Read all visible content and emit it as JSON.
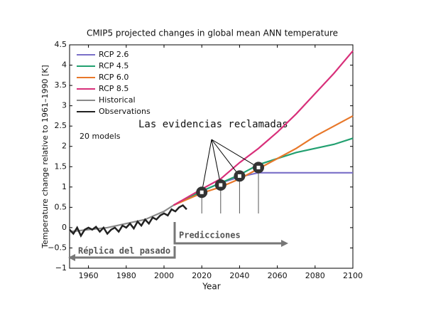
{
  "chart_data": {
    "type": "line",
    "title": "CMIP5 projected changes in global mean ANN temperature",
    "x_label": "Year",
    "y_label": "Temperature change relative to 1961–1990 [K]",
    "xlim": [
      1950,
      2100
    ],
    "xticks": [
      1960,
      1980,
      2000,
      2020,
      2040,
      2060,
      2080,
      2100
    ],
    "ylim": [
      -1,
      4.5
    ],
    "yticks": [
      {
        "value": -1,
        "label": "−1"
      },
      {
        "value": -0.5,
        "label": "−0.5"
      },
      0,
      0.5,
      1,
      1.5,
      2,
      2.5,
      3,
      3.5,
      4,
      4.5
    ],
    "legend": "upper left",
    "series": [
      {
        "name": "RCP 2.6",
        "color": "#7a6fc8",
        "x": [
          2005,
          2020,
          2030,
          2040,
          2050,
          2060,
          2070,
          2080,
          2090,
          2100
        ],
        "values": [
          0.55,
          0.9,
          1.1,
          1.25,
          1.35,
          1.35,
          1.35,
          1.35,
          1.35,
          1.35
        ]
      },
      {
        "name": "RCP 4.5",
        "color": "#22a070",
        "x": [
          2005,
          2020,
          2030,
          2040,
          2050,
          2060,
          2070,
          2080,
          2090,
          2100
        ],
        "values": [
          0.55,
          0.9,
          1.1,
          1.3,
          1.55,
          1.7,
          1.85,
          1.95,
          2.05,
          2.2
        ]
      },
      {
        "name": "RCP 6.0",
        "color": "#e8782a",
        "x": [
          2005,
          2020,
          2030,
          2040,
          2050,
          2060,
          2070,
          2080,
          2090,
          2100
        ],
        "values": [
          0.55,
          0.85,
          1.0,
          1.2,
          1.45,
          1.7,
          1.95,
          2.25,
          2.5,
          2.75
        ]
      },
      {
        "name": "RCP 8.5",
        "color": "#d8307a",
        "x": [
          2005,
          2020,
          2030,
          2040,
          2050,
          2060,
          2070,
          2080,
          2090,
          2100
        ],
        "values": [
          0.55,
          0.95,
          1.2,
          1.6,
          1.95,
          2.35,
          2.8,
          3.3,
          3.8,
          4.35
        ]
      },
      {
        "name": "Historical",
        "color": "#8a8a8a",
        "x": [
          1950,
          1960,
          1970,
          1980,
          1990,
          2000,
          2005
        ],
        "values": [
          -0.1,
          -0.05,
          0.0,
          0.1,
          0.2,
          0.4,
          0.55
        ]
      },
      {
        "name": "Observations",
        "color": "#222222",
        "x": [
          1950,
          1952,
          1954,
          1956,
          1958,
          1960,
          1962,
          1964,
          1966,
          1968,
          1970,
          1972,
          1974,
          1976,
          1978,
          1980,
          1982,
          1984,
          1986,
          1988,
          1990,
          1992,
          1994,
          1996,
          1998,
          2000,
          2002,
          2004,
          2006,
          2008,
          2010,
          2012
        ],
        "values": [
          -0.05,
          -0.15,
          0.0,
          -0.2,
          -0.05,
          0.0,
          -0.05,
          0.02,
          -0.1,
          0.0,
          -0.15,
          -0.05,
          0.0,
          -0.1,
          0.05,
          0.0,
          0.1,
          -0.02,
          0.15,
          0.05,
          0.2,
          0.1,
          0.25,
          0.2,
          0.3,
          0.35,
          0.3,
          0.45,
          0.4,
          0.5,
          0.55,
          0.45
        ]
      }
    ],
    "models_note": "20 models",
    "highlight_label": "Las evidencias reclamadas",
    "highlight_points": {
      "x": [
        2020,
        2030,
        2040,
        2050
      ],
      "values": [
        0.87,
        1.05,
        1.27,
        1.48
      ]
    },
    "future_label": "Predicciones",
    "past_label": "Réplica del pasado"
  }
}
